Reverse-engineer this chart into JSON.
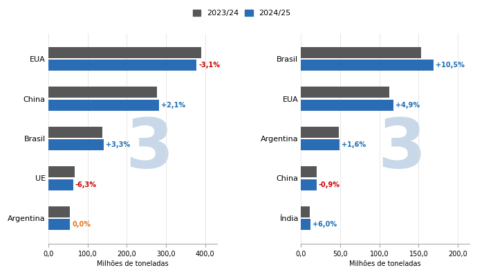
{
  "corn": {
    "categories": [
      "EUA",
      "China",
      "Brasil",
      "UE",
      "Argentina"
    ],
    "val_2324": [
      390,
      277,
      137,
      67,
      55
    ],
    "val_2425": [
      378,
      283,
      142,
      63,
      55
    ],
    "pct_labels": [
      "-3,1%",
      "+2,1%",
      "+3,3%",
      "-6,3%",
      "0,0%"
    ],
    "pct_colors": [
      "#cc0000",
      "#1f6db5",
      "#1f6db5",
      "#cc0000",
      "#e07820"
    ],
    "xlabel": "Milhões de toneladas",
    "xlim": [
      0,
      430
    ],
    "xticks": [
      0,
      100,
      200,
      300,
      400
    ],
    "xtick_labels": [
      "0,0",
      "100,0",
      "200,0",
      "300,0",
      "400,0"
    ]
  },
  "soy": {
    "categories": [
      "Brasil",
      "EUA",
      "Argentina",
      "China",
      "Índia"
    ],
    "val_2324": [
      153,
      113,
      48,
      20,
      11
    ],
    "val_2425": [
      169,
      118,
      49,
      20,
      12
    ],
    "pct_labels": [
      "+10,5%",
      "+4,9%",
      "+1,6%",
      "-0,9%",
      "+6,0%"
    ],
    "pct_colors": [
      "#1f6db5",
      "#1f6db5",
      "#1f6db5",
      "#cc0000",
      "#1f6db5"
    ],
    "xlabel": "Milhões de toneladas",
    "xlim": [
      0,
      215
    ],
    "xticks": [
      0,
      50,
      100,
      150,
      200
    ],
    "xtick_labels": [
      "0,0",
      "50,0",
      "100,0",
      "150,0",
      "200,0"
    ]
  },
  "color_2324": "#575757",
  "color_2425": "#2a6db5",
  "legend_labels": [
    "2023/24",
    "2024/25"
  ],
  "bg_color": "#ffffff",
  "watermark_color": "#c8d8e8"
}
